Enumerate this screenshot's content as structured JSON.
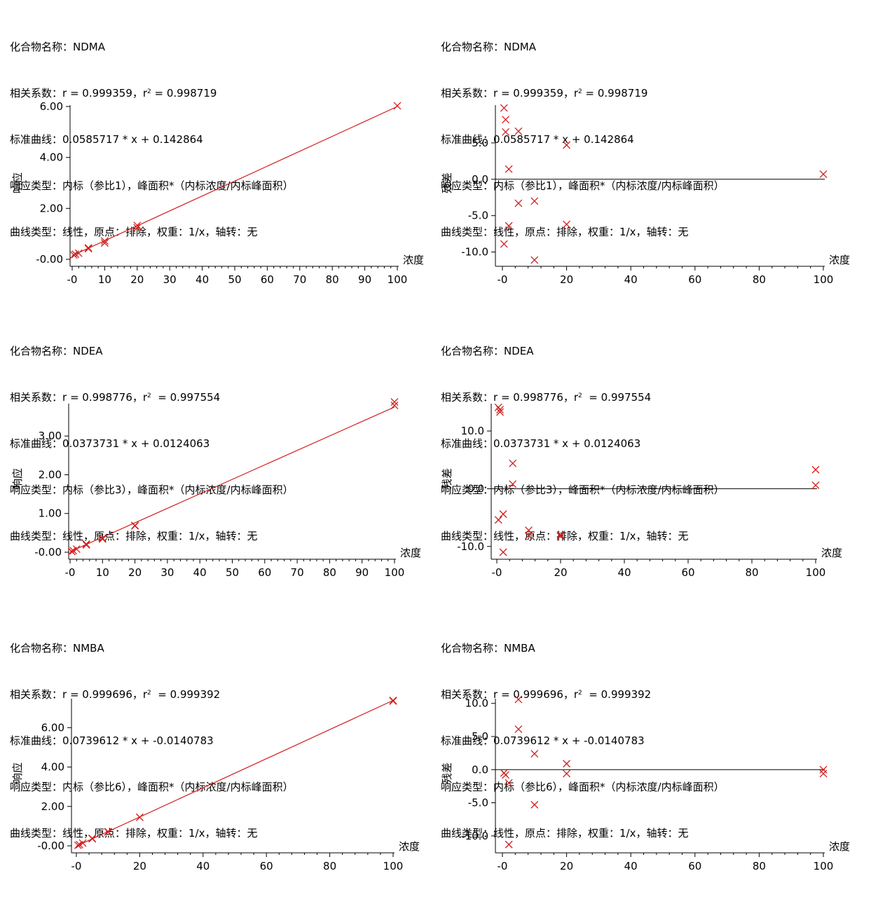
{
  "label_prefixes": {
    "name": "化合物名称：",
    "corr": "相关系数：",
    "curve": "标准曲线：",
    "resp": "响应类型：",
    "ctype": "曲线类型："
  },
  "colors": {
    "points": "#d21f1f",
    "line": "#d21f1f",
    "axis": "#000000"
  },
  "rows": [
    {
      "name": "NDMA",
      "r_text": "r = 0.999359，r",
      "r2_sup": "2",
      "r2_text": " = 0.998719",
      "curve": "0.0585717 * x + 0.142864",
      "response": "内标（参比1），峰面积*（内标浓度/内标峰面积）",
      "curve_type": "线性，原点：排除，权重：1/x，轴转：无"
    },
    {
      "name": "NDEA",
      "r_text": "r = 0.998776，r",
      "r2_sup": "2",
      "r2_text": "  = 0.997554",
      "curve": "0.0373731 * x + 0.0124063",
      "response": "内标（参比3），峰面积*（内标浓度/内标峰面积）",
      "curve_type": "线性，原点：排除，权重：1/x，轴转：无"
    },
    {
      "name": "NMBA",
      "r_text": "r = 0.999696，r",
      "r2_sup": "2",
      "r2_text": "  = 0.999392",
      "curve": "0.0739612 * x + -0.0140783",
      "response": "内标（参比6），峰面积*（内标浓度/内标峰面积）",
      "curve_type": "线性，原点：排除，权重：1/x，轴转：无"
    }
  ],
  "chart_data": [
    {
      "compound": "NDMA",
      "type": "scatter",
      "kind": "calibration",
      "xlabel": "浓度",
      "ylabel": "响应",
      "xlim": [
        0,
        100
      ],
      "ylim": [
        0,
        6.0
      ],
      "xticks": [
        "-0",
        "10",
        "20",
        "30",
        "40",
        "50",
        "60",
        "70",
        "80",
        "90",
        "100"
      ],
      "xtick_values": [
        0,
        10,
        20,
        30,
        40,
        50,
        60,
        70,
        80,
        90,
        100
      ],
      "yticks": [
        "-0.00",
        "2.00",
        "4.00",
        "6.00"
      ],
      "ytick_values": [
        0,
        2,
        4,
        6
      ],
      "fit": {
        "slope": 0.0585717,
        "intercept": 0.142864
      },
      "points": [
        [
          0.5,
          0.17
        ],
        [
          1,
          0.2
        ],
        [
          2,
          0.24
        ],
        [
          5,
          0.42
        ],
        [
          5,
          0.45
        ],
        [
          10,
          0.64
        ],
        [
          10,
          0.72
        ],
        [
          20,
          1.24
        ],
        [
          20,
          1.33
        ],
        [
          100,
          6.03
        ]
      ]
    },
    {
      "compound": "NDMA",
      "type": "scatter",
      "kind": "residual",
      "xlabel": "浓度",
      "ylabel": "残差",
      "xlim": [
        0,
        100
      ],
      "ylim": [
        -11,
        10
      ],
      "xticks": [
        "-0",
        "20",
        "40",
        "60",
        "80",
        "100"
      ],
      "xtick_values": [
        0,
        20,
        40,
        60,
        80,
        100
      ],
      "yticks": [
        "-10.0",
        "-5.0",
        "0.0",
        "5.0"
      ],
      "ytick_values": [
        -10,
        -5,
        0,
        5
      ],
      "points": [
        [
          0.5,
          9.8
        ],
        [
          1,
          8.2
        ],
        [
          1,
          6.5
        ],
        [
          2,
          1.4
        ],
        [
          0.5,
          -8.9
        ],
        [
          2,
          -6.4
        ],
        [
          5,
          6.6
        ],
        [
          5,
          -3.3
        ],
        [
          10,
          -3.0
        ],
        [
          10,
          -11.1
        ],
        [
          20,
          4.7
        ],
        [
          20,
          -6.2
        ],
        [
          100,
          0.7
        ]
      ]
    },
    {
      "compound": "NDEA",
      "type": "scatter",
      "kind": "calibration",
      "xlabel": "浓度",
      "ylabel": "响应",
      "xlim": [
        0,
        100
      ],
      "ylim": [
        0,
        3.8
      ],
      "xticks": [
        "-0",
        "10",
        "20",
        "30",
        "40",
        "50",
        "60",
        "70",
        "80",
        "90",
        "100"
      ],
      "xtick_values": [
        0,
        10,
        20,
        30,
        40,
        50,
        60,
        70,
        80,
        90,
        100
      ],
      "yticks": [
        "-0.00",
        "1.00",
        "2.00",
        "3.00"
      ],
      "ytick_values": [
        0,
        1,
        2,
        3
      ],
      "fit": {
        "slope": 0.0373731,
        "intercept": 0.0124063
      },
      "points": [
        [
          0.5,
          0.02
        ],
        [
          1,
          0.04
        ],
        [
          2,
          0.08
        ],
        [
          5,
          0.19
        ],
        [
          5,
          0.21
        ],
        [
          10,
          0.34
        ],
        [
          10,
          0.36
        ],
        [
          20,
          0.68
        ],
        [
          20,
          0.69
        ],
        [
          100,
          3.79
        ],
        [
          100,
          3.88
        ]
      ]
    },
    {
      "compound": "NDEA",
      "type": "scatter",
      "kind": "residual",
      "xlabel": "浓度",
      "ylabel": "残差",
      "xlim": [
        0,
        100
      ],
      "ylim": [
        -11,
        14.5
      ],
      "xticks": [
        "-0",
        "20",
        "40",
        "60",
        "80",
        "100"
      ],
      "xtick_values": [
        0,
        20,
        40,
        60,
        80,
        100
      ],
      "yticks": [
        "-10.0",
        "0.0",
        "10.0"
      ],
      "ytick_values": [
        -10,
        0,
        10
      ],
      "points": [
        [
          0.5,
          14.1
        ],
        [
          1,
          13.7
        ],
        [
          1,
          13.3
        ],
        [
          0.5,
          -5.4
        ],
        [
          2,
          -4.4
        ],
        [
          2,
          -11.0
        ],
        [
          5,
          4.4
        ],
        [
          5,
          0.8
        ],
        [
          10,
          -7.2
        ],
        [
          10,
          -8.1
        ],
        [
          20,
          -8.0
        ],
        [
          20,
          -8.2
        ],
        [
          100,
          3.3
        ],
        [
          100,
          0.6
        ]
      ]
    },
    {
      "compound": "NMBA",
      "type": "scatter",
      "kind": "calibration",
      "xlabel": "浓度",
      "ylabel": "响应",
      "xlim": [
        0,
        100
      ],
      "ylim": [
        0,
        7.4
      ],
      "xticks": [
        "-0",
        "20",
        "40",
        "60",
        "80",
        "100"
      ],
      "xtick_values": [
        0,
        20,
        40,
        60,
        80,
        100
      ],
      "yticks": [
        "-0.00",
        "2.00",
        "4.00",
        "6.00"
      ],
      "ytick_values": [
        0,
        2,
        4,
        6
      ],
      "fit": {
        "slope": 0.0739612,
        "intercept": -0.0140783
      },
      "points": [
        [
          0.5,
          0.03
        ],
        [
          1,
          0.06
        ],
        [
          2,
          0.14
        ],
        [
          5,
          0.38
        ],
        [
          5,
          0.36
        ],
        [
          10,
          0.72
        ],
        [
          10,
          0.7
        ],
        [
          20,
          1.45
        ],
        [
          100,
          7.35
        ],
        [
          100,
          7.38
        ]
      ]
    },
    {
      "compound": "NMBA",
      "type": "scatter",
      "kind": "residual",
      "xlabel": "浓度",
      "ylabel": "残差",
      "xlim": [
        0,
        100
      ],
      "ylim": [
        -11.5,
        10.5
      ],
      "xticks": [
        "-0",
        "20",
        "40",
        "60",
        "80",
        "100"
      ],
      "xtick_values": [
        0,
        20,
        40,
        60,
        80,
        100
      ],
      "yticks": [
        "-10.0",
        "-5.0",
        "0.0",
        "5.0",
        "10.0"
      ],
      "ytick_values": [
        -10,
        -5,
        0,
        5,
        10
      ],
      "points": [
        [
          0.5,
          -0.5
        ],
        [
          1,
          -0.8
        ],
        [
          2,
          -2.0
        ],
        [
          2,
          -11.3
        ],
        [
          5,
          10.6
        ],
        [
          5,
          6.1
        ],
        [
          10,
          2.4
        ],
        [
          10,
          -5.3
        ],
        [
          20,
          0.9
        ],
        [
          20,
          -0.6
        ],
        [
          100,
          0.0
        ],
        [
          100,
          -0.6
        ]
      ]
    }
  ]
}
